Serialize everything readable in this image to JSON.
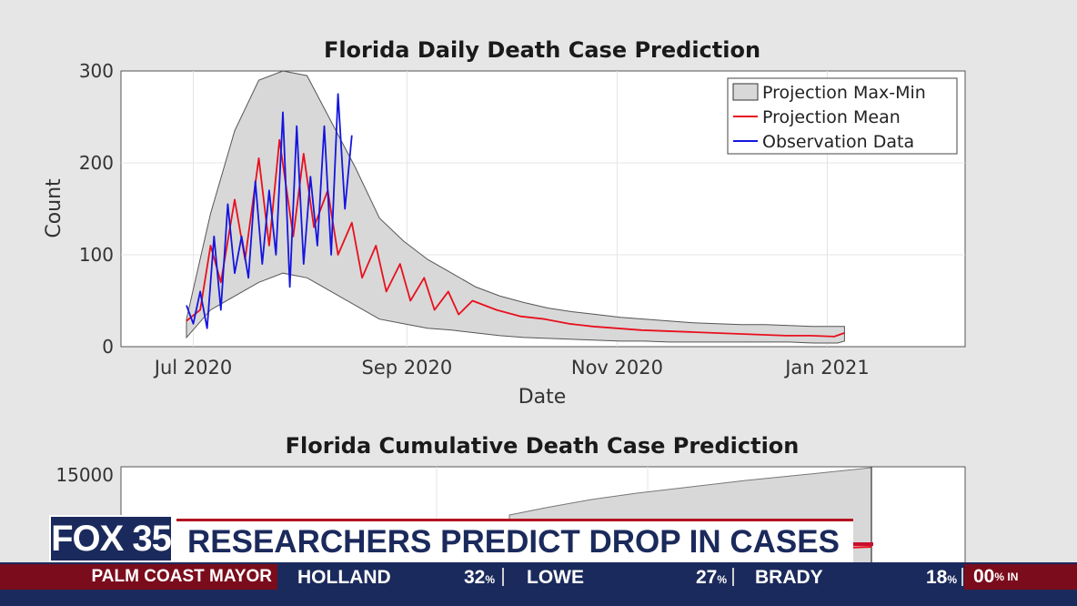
{
  "chart_data": [
    {
      "type": "line",
      "title": "Florida Daily Death Case Prediction",
      "xlabel": "Date",
      "ylabel": "Count",
      "xlim": [
        "2020-06-10",
        "2021-02-10"
      ],
      "ylim": [
        0,
        300
      ],
      "xticks": [
        "Jul 2020",
        "Sep 2020",
        "Nov 2020",
        "Jan 2021"
      ],
      "yticks": [
        0,
        100,
        200,
        300
      ],
      "grid": true,
      "legend": {
        "placement": "top-right",
        "entries": [
          "Projection Max-Min",
          "Projection Mean",
          "Observation Data"
        ]
      },
      "series": [
        {
          "name": "Projection Mean",
          "color": "#e8101e",
          "x": [
            "2020-06-29",
            "2020-07-03",
            "2020-07-06",
            "2020-07-09",
            "2020-07-13",
            "2020-07-16",
            "2020-07-20",
            "2020-07-23",
            "2020-07-26",
            "2020-07-30",
            "2020-08-02",
            "2020-08-05",
            "2020-08-09",
            "2020-08-12",
            "2020-08-16",
            "2020-08-19",
            "2020-08-23",
            "2020-08-26",
            "2020-08-30",
            "2020-09-02",
            "2020-09-06",
            "2020-09-09",
            "2020-09-13",
            "2020-09-16",
            "2020-09-20",
            "2020-09-27",
            "2020-10-04",
            "2020-10-11",
            "2020-10-18",
            "2020-10-25",
            "2020-11-01",
            "2020-11-08",
            "2020-11-15",
            "2020-11-22",
            "2020-11-29",
            "2020-12-06",
            "2020-12-13",
            "2020-12-20",
            "2020-12-27",
            "2021-01-03",
            "2021-01-06"
          ],
          "y": [
            28,
            40,
            110,
            70,
            160,
            95,
            205,
            110,
            225,
            120,
            210,
            130,
            170,
            100,
            135,
            75,
            110,
            60,
            90,
            50,
            75,
            40,
            60,
            35,
            50,
            40,
            33,
            30,
            25,
            22,
            20,
            18,
            17,
            16,
            15,
            14,
            13,
            12,
            12,
            11,
            15
          ]
        },
        {
          "name": "Observation Data",
          "color": "#1515e0",
          "x": [
            "2020-06-29",
            "2020-07-01",
            "2020-07-03",
            "2020-07-05",
            "2020-07-07",
            "2020-07-09",
            "2020-07-11",
            "2020-07-13",
            "2020-07-15",
            "2020-07-17",
            "2020-07-19",
            "2020-07-21",
            "2020-07-23",
            "2020-07-25",
            "2020-07-27",
            "2020-07-29",
            "2020-07-31",
            "2020-08-02",
            "2020-08-04",
            "2020-08-06",
            "2020-08-08",
            "2020-08-10",
            "2020-08-12",
            "2020-08-14",
            "2020-08-16"
          ],
          "y": [
            45,
            25,
            60,
            20,
            120,
            40,
            155,
            80,
            120,
            75,
            180,
            90,
            170,
            100,
            255,
            65,
            240,
            90,
            185,
            110,
            240,
            100,
            275,
            150,
            230
          ]
        }
      ],
      "band": {
        "name": "Projection Max-Min",
        "x": [
          "2020-06-29",
          "2020-07-06",
          "2020-07-13",
          "2020-07-20",
          "2020-07-27",
          "2020-08-03",
          "2020-08-10",
          "2020-08-17",
          "2020-08-24",
          "2020-08-31",
          "2020-09-07",
          "2020-09-14",
          "2020-09-21",
          "2020-09-28",
          "2020-10-05",
          "2020-10-12",
          "2020-10-19",
          "2020-10-26",
          "2020-11-02",
          "2020-11-09",
          "2020-11-16",
          "2020-11-23",
          "2020-11-30",
          "2020-12-07",
          "2020-12-14",
          "2020-12-21",
          "2020-12-28",
          "2021-01-04",
          "2021-01-06"
        ],
        "max": [
          30,
          145,
          235,
          290,
          300,
          295,
          245,
          195,
          140,
          115,
          95,
          80,
          65,
          55,
          48,
          42,
          38,
          35,
          32,
          30,
          28,
          26,
          25,
          24,
          24,
          23,
          22,
          22,
          22
        ],
        "min": [
          10,
          40,
          55,
          70,
          80,
          75,
          60,
          45,
          30,
          25,
          20,
          18,
          15,
          12,
          10,
          9,
          8,
          7,
          6,
          6,
          5,
          5,
          5,
          5,
          5,
          5,
          4,
          4,
          6
        ]
      }
    },
    {
      "type": "area",
      "title": "Florida Cumulative Death Case Prediction",
      "yticks": [
        15000
      ],
      "ytick_labels": [
        "15000"
      ]
    }
  ],
  "lower_third": {
    "logo": "FOX 35",
    "headline": "RESEARCHERS PREDICT DROP IN CASES",
    "ticker": {
      "topic": "PALM COAST MAYOR",
      "candidates": [
        {
          "name": "HOLLAND",
          "pct": "32",
          "unit": "%"
        },
        {
          "name": "LOWE",
          "pct": "27",
          "unit": "%"
        },
        {
          "name": "BRADY",
          "pct": "18",
          "unit": "%"
        }
      ],
      "reporting_value": "00",
      "reporting_unit": "% IN"
    }
  },
  "colors": {
    "navy": "#1b2a5c",
    "maroon": "#7a0c1c",
    "accent_red": "#c8102e"
  }
}
